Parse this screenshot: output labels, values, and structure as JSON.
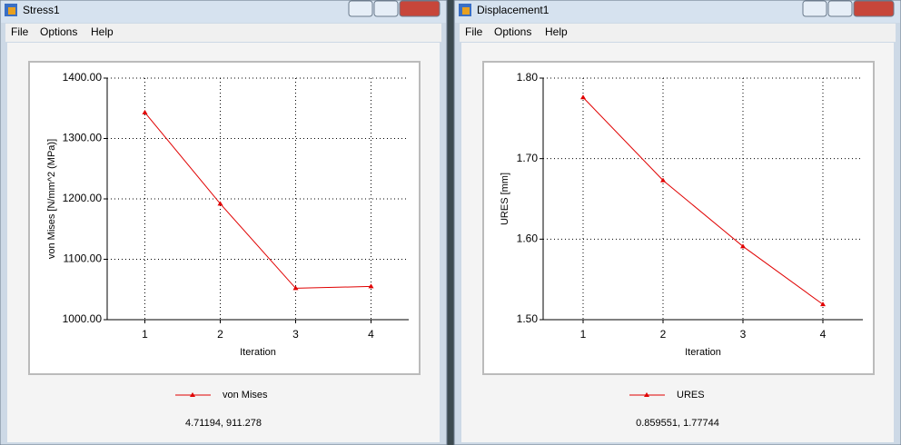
{
  "windows": [
    {
      "title": "Stress1",
      "menu": [
        "File",
        "Options",
        "Help"
      ],
      "status": "4.71194, 911.278"
    },
    {
      "title": "Displacement1",
      "menu": [
        "File",
        "Options",
        "Help"
      ],
      "status": "0.859551, 1.77744"
    }
  ],
  "chart_data": [
    {
      "type": "line",
      "x_label": "Iteration",
      "y_label": "von Mises [N/mm^2 (MPa)]",
      "x": [
        1,
        2,
        3,
        4
      ],
      "series": [
        {
          "name": "von Mises",
          "color": "#e00000",
          "values": [
            1343,
            1192,
            1052,
            1055
          ]
        }
      ],
      "xlim": [
        0.5,
        4.5
      ],
      "xticks": [
        1,
        2,
        3,
        4
      ],
      "ylim": [
        1000,
        1400
      ],
      "yticks": [
        {
          "value": 1000,
          "label": "1000.00"
        },
        {
          "value": 1100,
          "label": "1100.00"
        },
        {
          "value": 1200,
          "label": "1200.00"
        },
        {
          "value": 1300,
          "label": "1300.00"
        },
        {
          "value": 1400,
          "label": "1400.00"
        }
      ],
      "grid": true,
      "legend": "bottom"
    },
    {
      "type": "line",
      "x_label": "Iteration",
      "y_label": "URES [mm]",
      "x": [
        1,
        2,
        3,
        4
      ],
      "series": [
        {
          "name": "URES",
          "color": "#e00000",
          "values": [
            1.776,
            1.673,
            1.591,
            1.519
          ]
        }
      ],
      "xlim": [
        0.5,
        4.5
      ],
      "xticks": [
        1,
        2,
        3,
        4
      ],
      "ylim": [
        1.5,
        1.8
      ],
      "yticks": [
        {
          "value": 1.5,
          "label": "1.50"
        },
        {
          "value": 1.6,
          "label": "1.60"
        },
        {
          "value": 1.7,
          "label": "1.70"
        },
        {
          "value": 1.8,
          "label": "1.80"
        }
      ],
      "grid": true,
      "legend": "bottom"
    }
  ]
}
